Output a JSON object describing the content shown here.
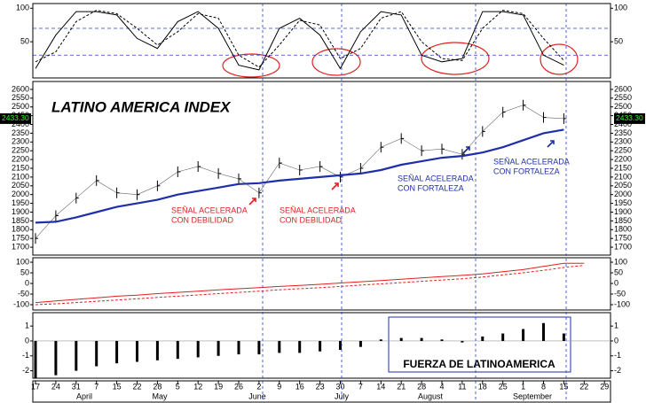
{
  "chart_data": [
    {
      "type": "line",
      "ylim": [
        -4,
        107
      ],
      "yticks": [
        100,
        50
      ],
      "ref_lines": [
        70,
        30
      ],
      "ref_color": "#2a3cc8",
      "series": [
        {
          "color": "#000000",
          "style": "solid",
          "values": [
            10,
            60,
            95,
            95,
            90,
            55,
            40,
            80,
            95,
            70,
            15,
            8,
            70,
            85,
            60,
            10,
            65,
            95,
            90,
            30,
            20,
            25,
            95,
            95,
            90,
            30,
            15,
            null,
            null
          ]
        },
        {
          "color": "#000000",
          "style": "dashed",
          "values": [
            20,
            35,
            80,
            97,
            92,
            70,
            45,
            65,
            92,
            85,
            30,
            12,
            45,
            82,
            75,
            25,
            40,
            85,
            95,
            50,
            25,
            22,
            70,
            97,
            92,
            55,
            22,
            null,
            null
          ]
        }
      ]
    },
    {
      "type": "price",
      "title": "LATINO AMERICA INDEX",
      "ylim": [
        1655,
        2645
      ],
      "yticks": [
        1700,
        1750,
        1800,
        1850,
        1900,
        1950,
        2000,
        2050,
        2100,
        2150,
        2200,
        2250,
        2300,
        2350,
        2400,
        2450,
        2500,
        2550,
        2600
      ],
      "last": {
        "value": 2433.3,
        "label": "2433.30"
      },
      "series": [
        {
          "color": "#000000",
          "values": [
            1750,
            1880,
            1980,
            2080,
            2010,
            2000,
            2050,
            2130,
            2160,
            2120,
            2090,
            2010,
            2180,
            2140,
            2160,
            2100,
            2150,
            2270,
            2320,
            2250,
            2260,
            2230,
            2360,
            2470,
            2510,
            2440,
            2433.3,
            null,
            null
          ]
        },
        {
          "color": "#1f2fa8",
          "values": [
            1840,
            1845,
            1870,
            1900,
            1930,
            1950,
            1970,
            2000,
            2020,
            2040,
            2060,
            2065,
            2080,
            2090,
            2100,
            2110,
            2120,
            2140,
            2170,
            2190,
            2210,
            2220,
            2240,
            2270,
            2310,
            2350,
            2370,
            null,
            null
          ]
        }
      ],
      "annotations": [
        {
          "lines": [
            "SEÑAL ACELERADA",
            "CON DEBILIDAD"
          ],
          "color": "#e02020"
        },
        {
          "lines": [
            "SEÑAL ACELERADA",
            "CON DEBILIDAD"
          ],
          "color": "#e02020"
        },
        {
          "lines": [
            "SEÑAL ACELERADA",
            "CON FORTALEZA"
          ],
          "color": "#1f2fa8"
        },
        {
          "lines": [
            "SEÑAL ACELERADA",
            "CON FORTALEZA"
          ],
          "color": "#1f2fa8"
        }
      ]
    },
    {
      "type": "line",
      "ylim": [
        -125,
        121
      ],
      "yticks": [
        100,
        50,
        0,
        -50,
        -100
      ],
      "series": [
        {
          "color": "#e02020",
          "style": "solid",
          "values": [
            -90,
            -82,
            -75,
            -68,
            -60,
            -55,
            -48,
            -42,
            -36,
            -30,
            -25,
            -20,
            -14,
            -9,
            -4,
            2,
            8,
            14,
            20,
            26,
            32,
            38,
            45,
            55,
            65,
            80,
            95,
            95,
            null
          ]
        },
        {
          "color": "#e02020",
          "style": "dashed",
          "values": [
            -100,
            -96,
            -90,
            -84,
            -78,
            -72,
            -66,
            -60,
            -54,
            -48,
            -42,
            -36,
            -30,
            -25,
            -20,
            -14,
            -8,
            -2,
            4,
            10,
            16,
            22,
            30,
            40,
            50,
            62,
            75,
            85,
            null
          ]
        }
      ]
    },
    {
      "type": "bar",
      "ylim": [
        -2.5,
        1.9
      ],
      "yticks": [
        1,
        0,
        -1,
        -2
      ],
      "color": "#000000",
      "values": [
        -2.5,
        -2.3,
        -2.0,
        -1.7,
        -1.5,
        -1.4,
        -1.3,
        -1.2,
        -1.1,
        -1.0,
        -0.9,
        -0.9,
        -0.8,
        -0.8,
        -0.7,
        -0.6,
        -0.4,
        0.1,
        0.2,
        0.2,
        0.1,
        -0.1,
        0.3,
        0.5,
        0.8,
        1.2,
        0.5,
        null,
        null
      ],
      "annotation": "FUERZA DE LATINOAMERICA",
      "categories": [
        "17",
        "24",
        "31",
        "7",
        "15",
        "22",
        "28",
        "5",
        "12",
        "19",
        "26",
        "2",
        "9",
        "16",
        "23",
        "30",
        "7",
        "14",
        "21",
        "28",
        "4",
        "11",
        "18",
        "25",
        "1",
        "8",
        "15",
        "22",
        "29"
      ],
      "months": [
        "April",
        "May",
        "June",
        "July",
        "August",
        "September"
      ]
    }
  ]
}
